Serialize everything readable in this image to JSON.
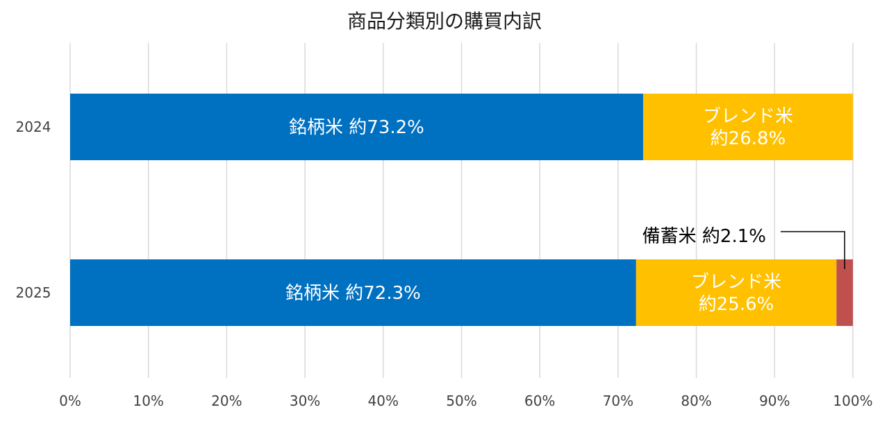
{
  "chart_data": {
    "type": "bar",
    "orientation": "horizontal",
    "stacked": "percent",
    "title": "商品分類別の購買内訳",
    "categories": [
      "2024",
      "2025"
    ],
    "series": [
      {
        "key": "brand",
        "color": "#0070C0",
        "values": [
          73.2,
          72.3
        ],
        "labels": [
          [
            "銘柄米 約73.2%"
          ],
          [
            "銘柄米 約72.3%"
          ]
        ]
      },
      {
        "key": "blend",
        "color": "#FFC000",
        "values": [
          26.8,
          25.6
        ],
        "labels": [
          [
            "ブレンド米",
            "約26.8%"
          ],
          [
            "ブレンド米",
            "約25.6%"
          ]
        ]
      },
      {
        "key": "reserve",
        "color": "#C0504D",
        "values": [
          0,
          2.1
        ],
        "labels": [
          [],
          []
        ]
      }
    ],
    "annotation": {
      "text": "備蓄米 約2.1%",
      "category": "2025",
      "series": "reserve"
    },
    "xlim": [
      0,
      100
    ],
    "xticks": [
      0,
      10,
      20,
      30,
      40,
      50,
      60,
      70,
      80,
      90,
      100
    ],
    "tick_suffix": "%",
    "grid": true,
    "legend": "none"
  }
}
